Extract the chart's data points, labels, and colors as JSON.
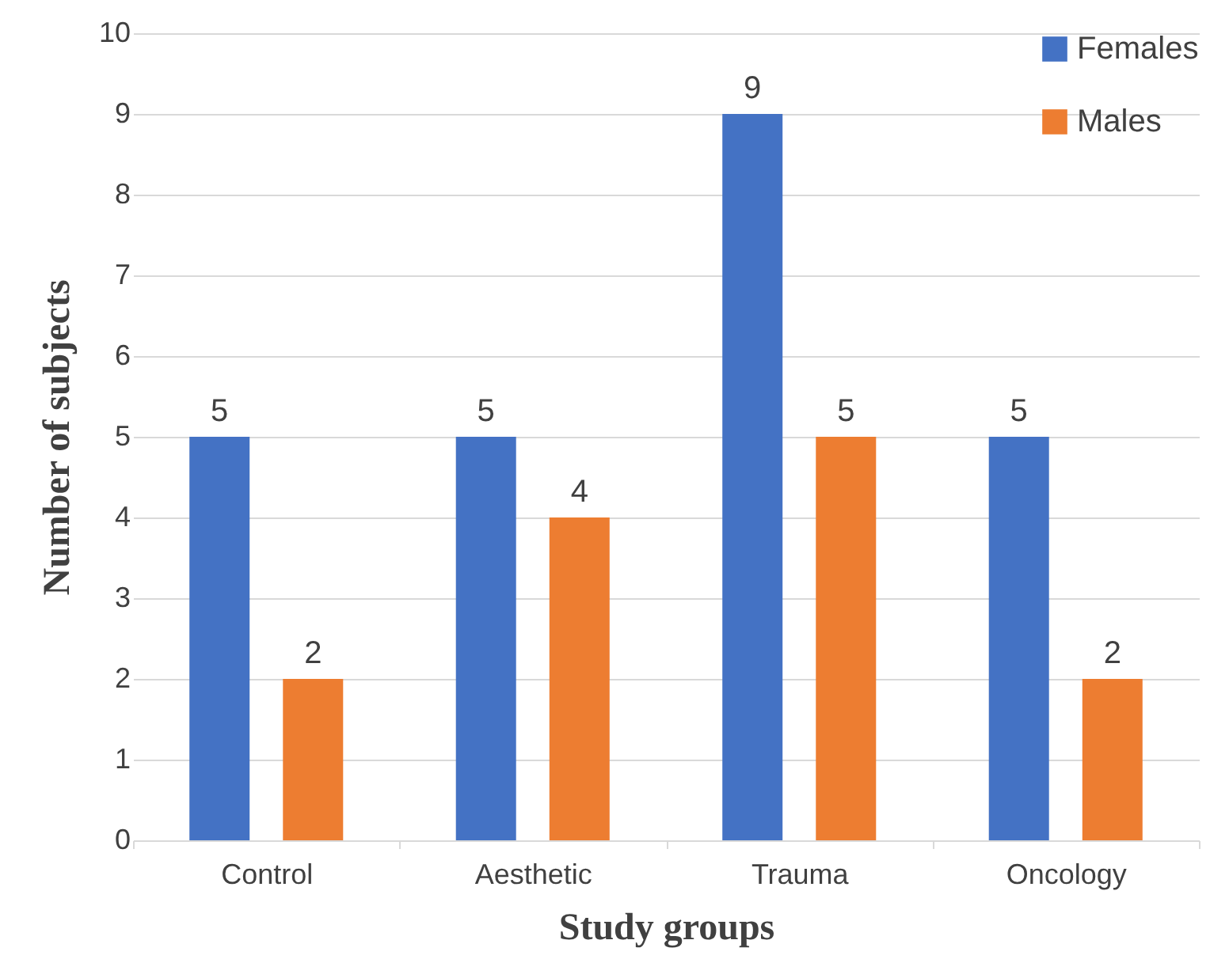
{
  "chart_data": {
    "type": "bar",
    "xlabel": "Study groups",
    "ylabel": "Number of subjects",
    "categories": [
      "Control",
      "Aesthetic",
      "Trauma",
      "Oncology"
    ],
    "series": [
      {
        "name": "Females",
        "color": "#4472c4",
        "values": [
          5,
          5,
          9,
          5
        ]
      },
      {
        "name": "Males",
        "color": "#ed7d31",
        "values": [
          2,
          4,
          5,
          2
        ]
      }
    ],
    "ylim": [
      0,
      10
    ],
    "yticks": [
      0,
      1,
      2,
      3,
      4,
      5,
      6,
      7,
      8,
      9,
      10
    ],
    "grid": "y",
    "legend": "top right",
    "data_labels": true
  }
}
